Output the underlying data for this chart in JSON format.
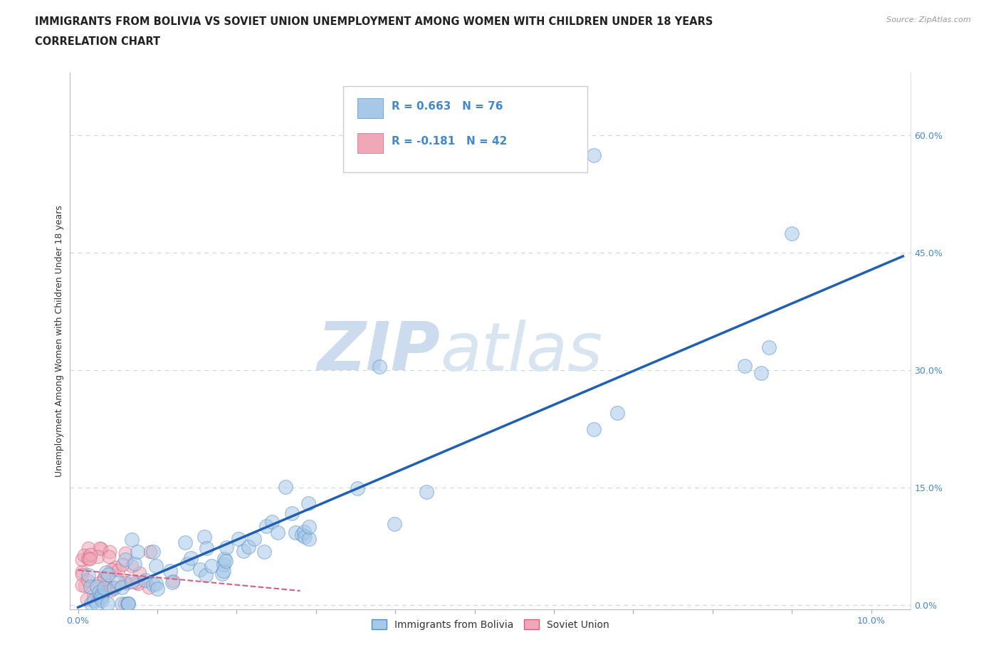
{
  "title_line1": "IMMIGRANTS FROM BOLIVIA VS SOVIET UNION UNEMPLOYMENT AMONG WOMEN WITH CHILDREN UNDER 18 YEARS",
  "title_line2": "CORRELATION CHART",
  "source_text": "Source: ZipAtlas.com",
  "ylabel": "Unemployment Among Women with Children Under 18 years",
  "bolivia_color": "#a8c8e8",
  "soviet_color": "#f0a8b8",
  "bolivia_edge_color": "#5090c8",
  "soviet_edge_color": "#d06080",
  "bolivia_line_color": "#2060b0",
  "soviet_line_color": "#d06080",
  "bolivia_R": 0.663,
  "bolivia_N": 76,
  "soviet_R": -0.181,
  "soviet_N": 42,
  "legend_label_bolivia": "Immigrants from Bolivia",
  "legend_label_soviet": "Soviet Union",
  "watermark_zip": "ZIP",
  "watermark_atlas": "atlas",
  "xlim_min": -0.001,
  "xlim_max": 0.105,
  "ylim_min": -0.005,
  "ylim_max": 0.68,
  "ytick_vals": [
    0.0,
    0.15,
    0.3,
    0.45,
    0.6
  ],
  "ytick_labels": [
    "0.0%",
    "15.0%",
    "30.0%",
    "45.0%",
    "60.0%"
  ],
  "xtick_vals": [
    0.0,
    0.01,
    0.02,
    0.03,
    0.04,
    0.05,
    0.06,
    0.07,
    0.08,
    0.09,
    0.1
  ],
  "xtick_labels": [
    "0.0%",
    "",
    "",
    "",
    "",
    "",
    "",
    "",
    "",
    "",
    "10.0%"
  ],
  "title_fontsize": 10.5,
  "ylabel_fontsize": 9,
  "tick_fontsize": 9,
  "watermark_color": "#ccdcee",
  "grid_color": "#c8d4e0",
  "background_color": "#ffffff",
  "right_ytick_color": "#4488cc"
}
